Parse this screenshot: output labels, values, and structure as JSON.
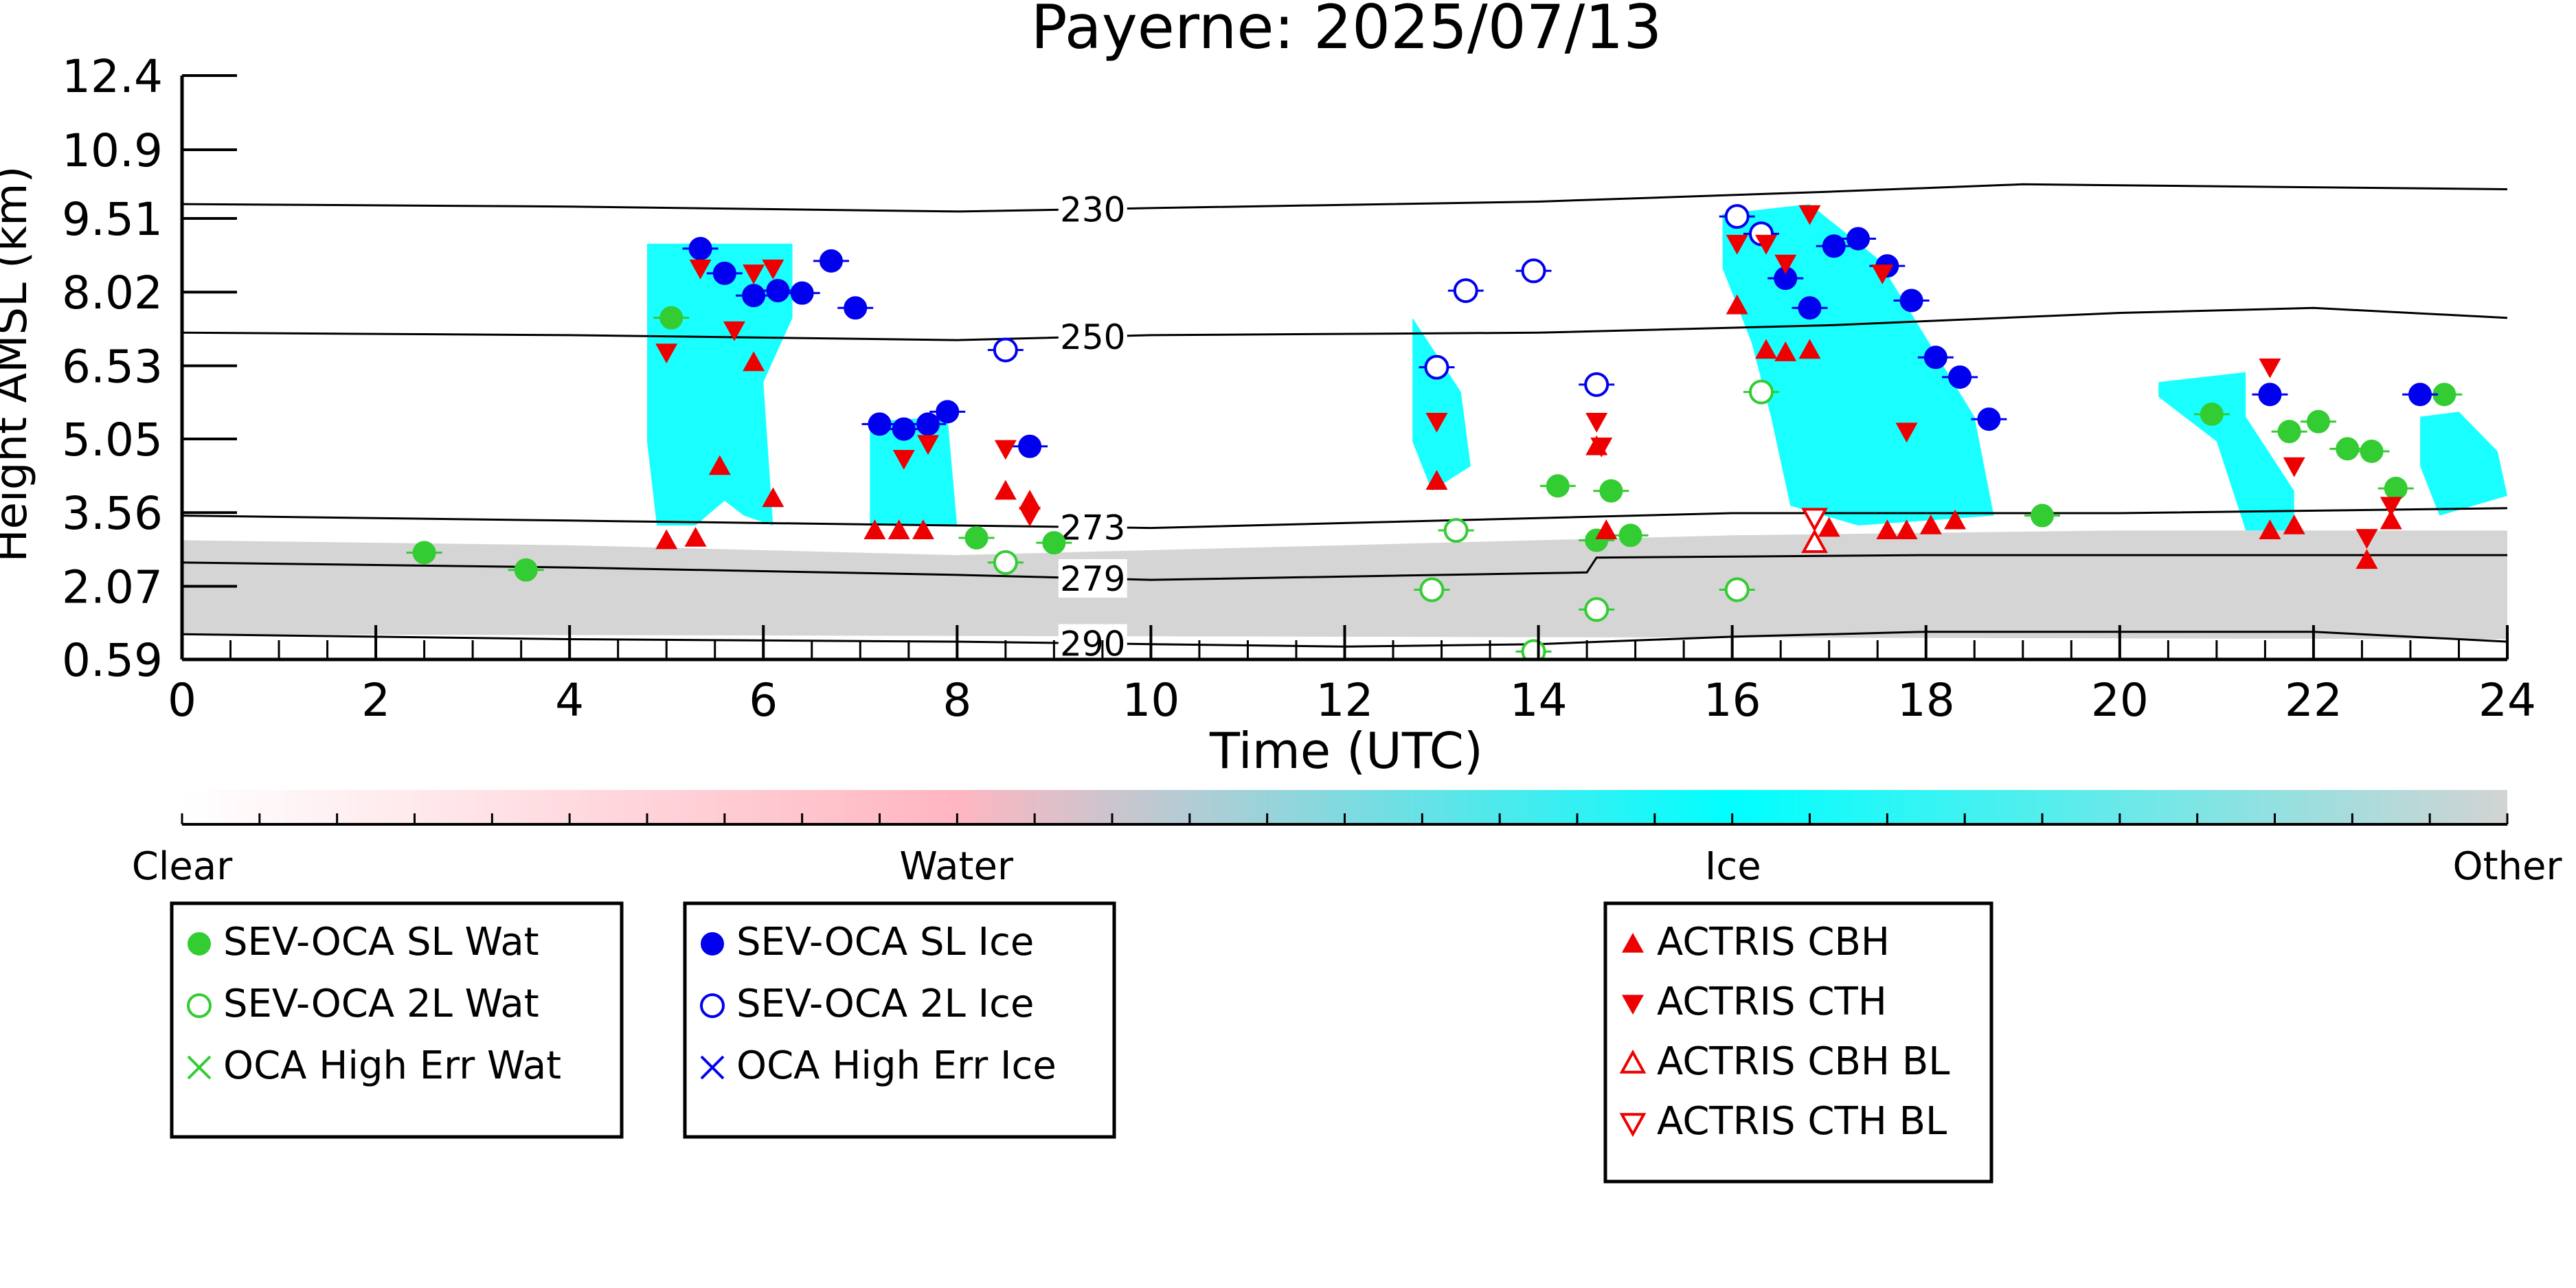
{
  "chart_data": {
    "type": "scatter",
    "title": "Payerne: 2025/07/13",
    "xlabel": "Time (UTC)",
    "ylabel": "Height AMSL (km)",
    "xlim": [
      0,
      24
    ],
    "ylim": [
      0.59,
      12.4
    ],
    "x_ticks": [
      "0",
      "2",
      "4",
      "6",
      "8",
      "10",
      "12",
      "14",
      "16",
      "18",
      "20",
      "22",
      "24"
    ],
    "y_ticks": [
      "0.59",
      "2.07",
      "3.56",
      "5.05",
      "6.53",
      "8.02",
      "9.51",
      "10.9",
      "12.4"
    ],
    "isotherms": [
      {
        "label": "230",
        "label_x": 9.4,
        "points": [
          [
            0,
            9.8
          ],
          [
            4,
            9.75
          ],
          [
            8,
            9.65
          ],
          [
            10,
            9.72
          ],
          [
            14,
            9.85
          ],
          [
            17,
            10.05
          ],
          [
            19,
            10.2
          ],
          [
            24,
            10.1
          ]
        ]
      },
      {
        "label": "250",
        "label_x": 9.4,
        "points": [
          [
            0,
            7.2
          ],
          [
            4,
            7.15
          ],
          [
            8,
            7.05
          ],
          [
            10,
            7.15
          ],
          [
            14,
            7.2
          ],
          [
            17,
            7.35
          ],
          [
            20,
            7.6
          ],
          [
            22,
            7.7
          ],
          [
            24,
            7.5
          ]
        ]
      },
      {
        "label": "273",
        "label_x": 9.4,
        "points": [
          [
            0,
            3.5
          ],
          [
            4,
            3.4
          ],
          [
            8,
            3.3
          ],
          [
            10,
            3.25
          ],
          [
            12,
            3.35
          ],
          [
            16,
            3.55
          ],
          [
            20,
            3.55
          ],
          [
            24,
            3.65
          ]
        ]
      },
      {
        "label": "279",
        "label_x": 9.4,
        "points": [
          [
            0,
            2.55
          ],
          [
            4,
            2.45
          ],
          [
            8,
            2.3
          ],
          [
            10,
            2.2
          ],
          [
            14.5,
            2.35
          ],
          [
            14.6,
            2.65
          ],
          [
            18,
            2.7
          ],
          [
            24,
            2.7
          ]
        ]
      },
      {
        "label": "290",
        "label_x": 9.4,
        "points": [
          [
            0,
            1.1
          ],
          [
            4,
            1.0
          ],
          [
            8,
            0.95
          ],
          [
            10,
            0.9
          ],
          [
            12,
            0.85
          ],
          [
            14,
            0.9
          ],
          [
            16,
            1.05
          ],
          [
            18,
            1.15
          ],
          [
            20,
            1.15
          ],
          [
            22,
            1.15
          ],
          [
            24,
            0.95
          ]
        ]
      }
    ],
    "cloud_regions": [
      {
        "class": "Other",
        "polygon": [
          [
            0,
            3.0
          ],
          [
            4,
            2.9
          ],
          [
            8,
            2.7
          ],
          [
            10,
            2.8
          ],
          [
            12,
            2.9
          ],
          [
            16,
            3.1
          ],
          [
            20,
            3.2
          ],
          [
            24,
            3.2
          ],
          [
            24,
            1.0
          ],
          [
            0,
            1.1
          ]
        ]
      },
      {
        "class": "Ice",
        "polygon": [
          [
            4.8,
            9.0
          ],
          [
            6.3,
            9.0
          ],
          [
            6.3,
            7.5
          ],
          [
            6.0,
            6.2
          ],
          [
            6.1,
            3.3
          ],
          [
            5.8,
            3.5
          ],
          [
            5.6,
            3.8
          ],
          [
            5.3,
            3.3
          ],
          [
            4.9,
            3.3
          ],
          [
            4.8,
            5.0
          ]
        ]
      },
      {
        "class": "Ice",
        "polygon": [
          [
            7.1,
            5.4
          ],
          [
            7.9,
            5.5
          ],
          [
            8.0,
            3.3
          ],
          [
            7.1,
            3.3
          ]
        ]
      },
      {
        "class": "Ice",
        "polygon": [
          [
            12.7,
            7.5
          ],
          [
            13.2,
            6.0
          ],
          [
            13.3,
            4.5
          ],
          [
            12.9,
            4.0
          ],
          [
            12.7,
            5.0
          ]
        ]
      },
      {
        "class": "Ice",
        "polygon": [
          [
            15.9,
            9.6
          ],
          [
            16.8,
            9.8
          ],
          [
            17.5,
            8.7
          ],
          [
            18.5,
            5.5
          ],
          [
            18.7,
            3.5
          ],
          [
            17.3,
            3.3
          ],
          [
            16.6,
            3.7
          ],
          [
            16.4,
            5.5
          ],
          [
            16.2,
            7.0
          ],
          [
            15.9,
            8.5
          ]
        ]
      },
      {
        "class": "Ice",
        "polygon": [
          [
            20.4,
            6.2
          ],
          [
            21.3,
            6.4
          ],
          [
            21.3,
            5.5
          ],
          [
            21.8,
            4.0
          ],
          [
            21.8,
            3.2
          ],
          [
            21.3,
            3.2
          ],
          [
            21.0,
            5.0
          ],
          [
            20.4,
            5.9
          ]
        ]
      },
      {
        "class": "Ice",
        "polygon": [
          [
            23.1,
            5.5
          ],
          [
            23.5,
            5.6
          ],
          [
            23.9,
            4.8
          ],
          [
            24,
            3.9
          ],
          [
            23.3,
            3.5
          ],
          [
            23.1,
            4.5
          ]
        ]
      }
    ],
    "series": [
      {
        "name": "SEV-OCA SL Wat",
        "marker": "filled-circle",
        "color": "#33cc33",
        "points": [
          [
            2.5,
            2.75
          ],
          [
            3.55,
            2.4
          ],
          [
            5.05,
            7.5
          ],
          [
            8.2,
            3.05
          ],
          [
            9.0,
            2.95
          ],
          [
            14.2,
            4.1
          ],
          [
            14.6,
            3.0
          ],
          [
            14.75,
            4.0
          ],
          [
            14.95,
            3.1
          ],
          [
            19.2,
            3.5
          ],
          [
            20.95,
            5.55
          ],
          [
            21.75,
            5.2
          ],
          [
            22.05,
            5.4
          ],
          [
            22.35,
            4.85
          ],
          [
            22.6,
            4.8
          ],
          [
            22.85,
            4.05
          ],
          [
            23.35,
            5.95
          ]
        ]
      },
      {
        "name": "SEV-OCA 2L Wat",
        "marker": "open-circle",
        "color": "#33cc33",
        "points": [
          [
            8.5,
            2.55
          ],
          [
            12.9,
            2.0
          ],
          [
            13.15,
            3.2
          ],
          [
            13.95,
            0.75
          ],
          [
            14.6,
            1.6
          ],
          [
            16.05,
            2.0
          ],
          [
            16.3,
            6.0
          ]
        ]
      },
      {
        "name": "SEV-OCA SL Ice",
        "marker": "filled-circle",
        "color": "#0000ee",
        "points": [
          [
            5.35,
            8.9
          ],
          [
            5.6,
            8.4
          ],
          [
            5.9,
            7.95
          ],
          [
            6.15,
            8.05
          ],
          [
            6.4,
            8.0
          ],
          [
            6.7,
            8.65
          ],
          [
            6.95,
            7.7
          ],
          [
            7.2,
            5.35
          ],
          [
            7.45,
            5.25
          ],
          [
            7.7,
            5.35
          ],
          [
            7.9,
            5.6
          ],
          [
            8.75,
            4.9
          ],
          [
            16.55,
            8.3
          ],
          [
            16.8,
            7.7
          ],
          [
            17.05,
            8.95
          ],
          [
            17.3,
            9.1
          ],
          [
            17.6,
            8.55
          ],
          [
            17.85,
            7.85
          ],
          [
            18.1,
            6.7
          ],
          [
            18.35,
            6.3
          ],
          [
            18.65,
            5.45
          ],
          [
            21.55,
            5.95
          ],
          [
            23.1,
            5.95
          ]
        ]
      },
      {
        "name": "SEV-OCA 2L Ice",
        "marker": "open-circle",
        "color": "#0000ee",
        "points": [
          [
            8.5,
            6.85
          ],
          [
            12.95,
            6.5
          ],
          [
            13.25,
            8.05
          ],
          [
            13.95,
            8.45
          ],
          [
            14.6,
            6.15
          ],
          [
            16.05,
            9.55
          ],
          [
            16.3,
            9.2
          ]
        ]
      },
      {
        "name": "OCA High Err Wat",
        "marker": "x",
        "color": "#33cc33",
        "points": []
      },
      {
        "name": "OCA High Err Ice",
        "marker": "x",
        "color": "#0000ee",
        "points": []
      },
      {
        "name": "ACTRIS CBH",
        "marker": "filled-triangle-up",
        "color": "#ee0000",
        "points": [
          [
            5.0,
            3.0
          ],
          [
            5.3,
            3.05
          ],
          [
            5.55,
            4.5
          ],
          [
            5.9,
            6.6
          ],
          [
            6.1,
            3.85
          ],
          [
            7.15,
            3.2
          ],
          [
            7.4,
            3.2
          ],
          [
            7.65,
            3.2
          ],
          [
            8.5,
            4.0
          ],
          [
            8.75,
            3.8
          ],
          [
            12.95,
            4.2
          ],
          [
            14.6,
            4.9
          ],
          [
            14.7,
            3.2
          ],
          [
            16.05,
            7.75
          ],
          [
            16.35,
            6.85
          ],
          [
            16.55,
            6.8
          ],
          [
            16.8,
            6.85
          ],
          [
            17.0,
            3.25
          ],
          [
            17.6,
            3.2
          ],
          [
            17.8,
            3.2
          ],
          [
            18.05,
            3.3
          ],
          [
            18.3,
            3.4
          ],
          [
            21.55,
            3.2
          ],
          [
            21.8,
            3.3
          ],
          [
            22.55,
            2.6
          ],
          [
            22.8,
            3.4
          ]
        ]
      },
      {
        "name": "ACTRIS CTH",
        "marker": "filled-triangle-down",
        "color": "#ee0000",
        "points": [
          [
            5.0,
            6.8
          ],
          [
            5.35,
            8.5
          ],
          [
            5.7,
            7.25
          ],
          [
            5.9,
            8.4
          ],
          [
            6.1,
            8.5
          ],
          [
            7.45,
            4.65
          ],
          [
            7.7,
            4.95
          ],
          [
            8.5,
            4.85
          ],
          [
            8.75,
            3.5
          ],
          [
            12.95,
            5.4
          ],
          [
            14.6,
            5.4
          ],
          [
            14.65,
            4.9
          ],
          [
            16.05,
            9.0
          ],
          [
            16.35,
            9.0
          ],
          [
            16.55,
            8.6
          ],
          [
            16.8,
            9.6
          ],
          [
            17.55,
            8.4
          ],
          [
            17.8,
            5.2
          ],
          [
            21.55,
            6.5
          ],
          [
            21.8,
            4.5
          ],
          [
            22.55,
            3.05
          ],
          [
            22.8,
            3.7
          ]
        ]
      },
      {
        "name": "ACTRIS CBH BL",
        "marker": "open-triangle-up",
        "color": "#ee0000",
        "points": [
          [
            16.85,
            2.95
          ]
        ]
      },
      {
        "name": "ACTRIS CTH BL",
        "marker": "open-triangle-down",
        "color": "#ee0000",
        "points": [
          [
            16.85,
            3.45
          ]
        ]
      }
    ],
    "colorbar": {
      "labels": [
        "Clear",
        "Water",
        "Ice",
        "Other"
      ],
      "positions": [
        0,
        0.333,
        0.667,
        1
      ],
      "colors": [
        "#ffffff",
        "#ffb6c1",
        "#00ffff",
        "#d3d3d3"
      ]
    },
    "legends": [
      [
        "SEV-OCA SL Wat",
        "SEV-OCA 2L Wat",
        "OCA High Err Wat"
      ],
      [
        "SEV-OCA SL Ice",
        "SEV-OCA 2L Ice",
        "OCA High Err Ice"
      ],
      [
        "ACTRIS CBH",
        "ACTRIS CTH",
        "ACTRIS CBH BL",
        "ACTRIS CTH BL"
      ]
    ],
    "grid": false
  }
}
